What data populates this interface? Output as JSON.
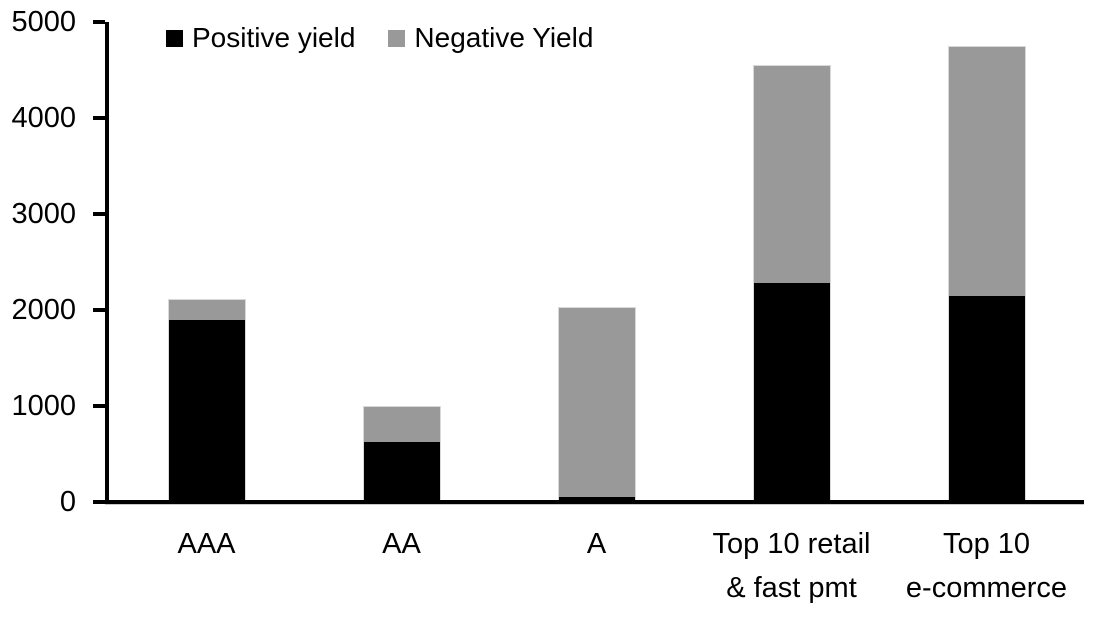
{
  "chart_data": {
    "type": "bar",
    "stacked": true,
    "title": "",
    "xlabel": "",
    "ylabel": "",
    "grid": false,
    "legend_position": "top-left",
    "background": "#ffffff",
    "axis_color": "#000000",
    "categories": [
      "AAA",
      "AA",
      "A",
      "Top 10 retail\n& fast pmt",
      "Top 10\ne-commerce"
    ],
    "series": [
      {
        "name": "Positive yield",
        "color": "#000000",
        "values": [
          1900,
          620,
          50,
          2280,
          2150
        ]
      },
      {
        "name": "Negative Yield",
        "color": "#999999",
        "values": [
          220,
          380,
          1980,
          2270,
          2600
        ]
      }
    ],
    "ylim": [
      0,
      5000
    ],
    "yticks": [
      0,
      1000,
      2000,
      3000,
      4000,
      5000
    ]
  }
}
